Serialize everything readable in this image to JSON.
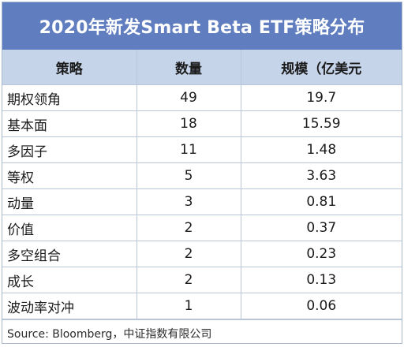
{
  "title": "2020年新发Smart Beta ETF策略分布",
  "headers": [
    "策略",
    "数量",
    "规模（亿美元"
  ],
  "rows": [
    {
      "strategy": "期权领角",
      "count": "49",
      "scale": "19.7"
    },
    {
      "strategy": "基本面",
      "count": "18",
      "scale": "15.59"
    },
    {
      "strategy": "多因子",
      "count": "11",
      "scale": "1.48"
    },
    {
      "strategy": "等权",
      "count": "5",
      "scale": "3.63"
    },
    {
      "strategy": "动量",
      "count": "3",
      "scale": "0.81"
    },
    {
      "strategy": "价值",
      "count": "2",
      "scale": "0.37"
    },
    {
      "strategy": "多空组合",
      "count": "2",
      "scale": "0.23"
    },
    {
      "strategy": "成长",
      "count": "2",
      "scale": "0.13"
    },
    {
      "strategy": "波动率对冲",
      "count": "1",
      "scale": "0.06"
    }
  ],
  "source": "Source: Bloomberg，中证指数有限公司",
  "colors": {
    "title_bg": "#5f7dbf",
    "header_bg": "#c6d4ea",
    "border": "#b9c6da"
  }
}
